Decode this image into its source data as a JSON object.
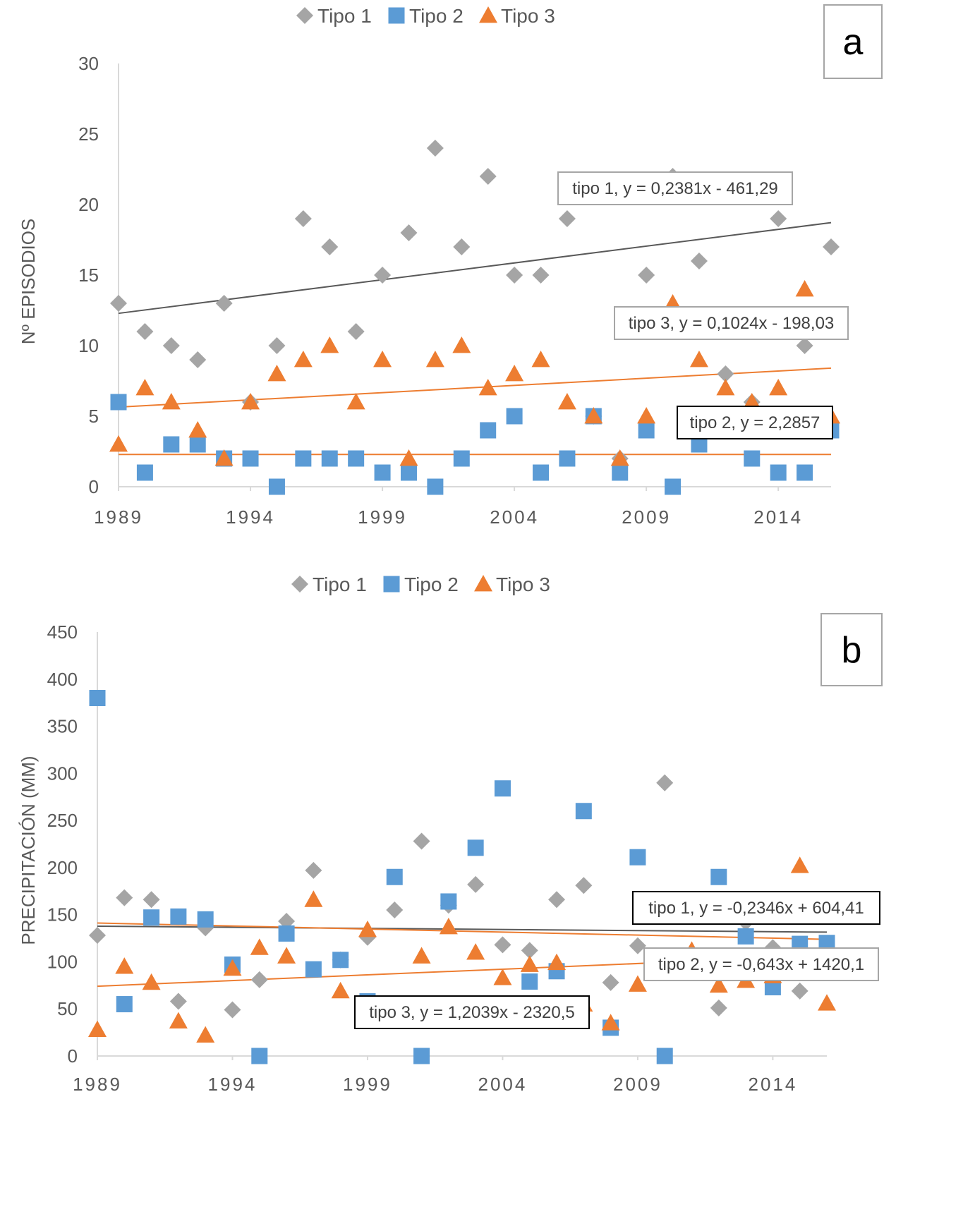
{
  "colors": {
    "tipo1": "#a5a5a5",
    "tipo2": "#5b9bd5",
    "tipo3": "#ed7d31",
    "trend1": "#595959",
    "axis": "#d9d9d9",
    "text": "#595959"
  },
  "chart_data": [
    {
      "type": "scatter",
      "panel_label": "a",
      "ylabel": "Nº EPISODIOS",
      "xlabel": "",
      "xlim": [
        1989,
        2016
      ],
      "ylim": [
        0,
        30
      ],
      "xticks": [
        1989,
        1994,
        1999,
        2004,
        2009,
        2014
      ],
      "yticks": [
        0,
        5,
        10,
        15,
        20,
        25,
        30
      ],
      "legend": [
        "Tipo 1",
        "Tipo 2",
        "Tipo 3"
      ],
      "legend_position": "top",
      "x": [
        1989,
        1990,
        1991,
        1992,
        1993,
        1994,
        1995,
        1996,
        1997,
        1998,
        1999,
        2000,
        2001,
        2002,
        2003,
        2004,
        2005,
        2006,
        2007,
        2008,
        2009,
        2010,
        2011,
        2012,
        2013,
        2014,
        2015,
        2016
      ],
      "series": [
        {
          "name": "Tipo 1",
          "marker": "diamond",
          "values": [
            13,
            11,
            10,
            9,
            13,
            6,
            10,
            19,
            17,
            11,
            15,
            18,
            24,
            17,
            22,
            15,
            15,
            19,
            5,
            2,
            15,
            22,
            16,
            8,
            6,
            19,
            10,
            17
          ]
        },
        {
          "name": "Tipo 2",
          "marker": "square",
          "values": [
            6,
            1,
            3,
            3,
            2,
            2,
            0,
            2,
            2,
            2,
            1,
            1,
            0,
            2,
            4,
            5,
            1,
            2,
            5,
            1,
            4,
            0,
            3,
            4,
            2,
            1,
            1,
            4
          ]
        },
        {
          "name": "Tipo 3",
          "marker": "triangle",
          "values": [
            3,
            7,
            6,
            4,
            2,
            6,
            8,
            9,
            10,
            6,
            9,
            2,
            9,
            10,
            7,
            8,
            9,
            6,
            5,
            2,
            5,
            13,
            9,
            7,
            6,
            7,
            14,
            5
          ]
        }
      ],
      "trendlines": [
        {
          "series": "Tipo 1",
          "slope": 0.2381,
          "intercept": -461.29,
          "label": "tipo 1, y = 0,2381x - 461,29"
        },
        {
          "series": "Tipo 3",
          "slope": 0.1024,
          "intercept": -198.03,
          "label": "tipo 3, y = 0,1024x - 198,03"
        },
        {
          "series": "Tipo 2",
          "slope": 0,
          "intercept": 2.2857,
          "label": "tipo 2, y = 2,2857"
        }
      ]
    },
    {
      "type": "scatter",
      "panel_label": "b",
      "ylabel": "PRECIPITACIÓN (MM)",
      "xlabel": "",
      "xlim": [
        1989,
        2016
      ],
      "ylim": [
        0,
        450
      ],
      "xticks": [
        1989,
        1994,
        1999,
        2004,
        2009,
        2014
      ],
      "yticks": [
        0,
        50,
        100,
        150,
        200,
        250,
        300,
        350,
        400,
        450
      ],
      "legend": [
        "Tipo 1",
        "Tipo 2",
        "Tipo 3"
      ],
      "legend_position": "top",
      "x": [
        1989,
        1990,
        1991,
        1992,
        1993,
        1994,
        1995,
        1996,
        1997,
        1998,
        1999,
        2000,
        2001,
        2002,
        2003,
        2004,
        2005,
        2006,
        2007,
        2008,
        2009,
        2010,
        2011,
        2012,
        2013,
        2014,
        2015,
        2016
      ],
      "series": [
        {
          "name": "Tipo 1",
          "marker": "diamond",
          "values": [
            128,
            168,
            166,
            58,
            136,
            49,
            81,
            143,
            197,
            102,
            126,
            155,
            228,
            160,
            182,
            118,
            112,
            166,
            181,
            78,
            117,
            290,
            105,
            51,
            142,
            115,
            69,
            90
          ]
        },
        {
          "name": "Tipo 2",
          "marker": "square",
          "values": [
            380,
            55,
            147,
            148,
            145,
            97,
            0,
            130,
            92,
            102,
            58,
            190,
            0,
            164,
            221,
            284,
            79,
            90,
            260,
            30,
            211,
            0,
            90,
            190,
            127,
            73,
            119,
            120
          ]
        },
        {
          "name": "Tipo 3",
          "marker": "triangle",
          "values": [
            28,
            95,
            78,
            37,
            22,
            93,
            115,
            106,
            166,
            69,
            134,
            37,
            106,
            137,
            110,
            83,
            97,
            99,
            55,
            35,
            76,
            97,
            112,
            75,
            80,
            85,
            202,
            56
          ]
        }
      ],
      "trendlines": [
        {
          "series": "Tipo 1",
          "slope": -0.2346,
          "intercept": 604.41,
          "label": "tipo 1, y = -0,2346x + 604,41"
        },
        {
          "series": "Tipo 2",
          "slope": -0.643,
          "intercept": 1420.1,
          "label": "tipo 2, y = -0,643x + 1420,1"
        },
        {
          "series": "Tipo 3",
          "slope": 1.2039,
          "intercept": -2320.5,
          "label": "tipo 3, y = 1,2039x - 2320,5"
        }
      ]
    }
  ]
}
